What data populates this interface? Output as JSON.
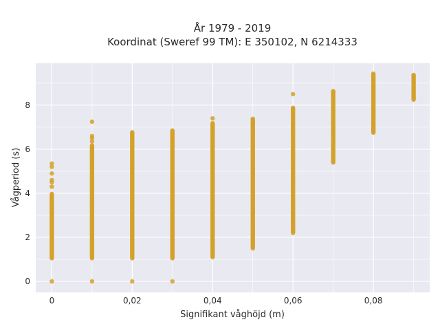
{
  "chart_data": {
    "type": "scatter",
    "title_line1": "År 1979 - 2019",
    "title_line2": "Koordinat (Sweref 99 TM): E 350102, N 6214333",
    "xlabel": "Signifikant våghöjd (m)",
    "ylabel": "Vågperiod (s)",
    "xlim": [
      -0.004,
      0.094
    ],
    "ylim": [
      -0.5,
      9.9
    ],
    "x_ticks": [
      0,
      0.02,
      0.04,
      0.06,
      0.08
    ],
    "x_tick_labels": [
      "0",
      "0,02",
      "0,04",
      "0,06",
      "0,08"
    ],
    "y_ticks": [
      0,
      2,
      4,
      6,
      8
    ],
    "y_tick_labels": [
      "0",
      "2",
      "4",
      "6",
      "8"
    ],
    "grid": true,
    "colors": {
      "plot_background": "#e9e9f1",
      "grid": "#ffffff",
      "marker": "#d4a12a"
    },
    "columns": [
      {
        "x": 0.0,
        "y_min": 1.05,
        "y_max": 4.0,
        "has_zero": true,
        "outliers": [
          4.3,
          4.5,
          4.6,
          4.9,
          5.2,
          5.35
        ]
      },
      {
        "x": 0.01,
        "y_min": 1.05,
        "y_max": 6.2,
        "has_zero": true,
        "outliers": [
          6.35,
          6.5,
          6.6,
          7.25
        ]
      },
      {
        "x": 0.02,
        "y_min": 1.05,
        "y_max": 6.8,
        "has_zero": true,
        "outliers": []
      },
      {
        "x": 0.03,
        "y_min": 1.05,
        "y_max": 6.85,
        "has_zero": true,
        "outliers": []
      },
      {
        "x": 0.04,
        "y_min": 1.1,
        "y_max": 7.2,
        "has_zero": false,
        "outliers": [
          7.4
        ]
      },
      {
        "x": 0.05,
        "y_min": 1.5,
        "y_max": 7.4,
        "has_zero": false,
        "outliers": []
      },
      {
        "x": 0.06,
        "y_min": 2.2,
        "y_max": 7.9,
        "has_zero": false,
        "outliers": [
          2.35,
          2.5,
          2.7,
          2.9,
          3.05,
          3.25,
          3.65,
          8.5
        ]
      },
      {
        "x": 0.07,
        "y_min": 5.4,
        "y_max": 8.65,
        "has_zero": false,
        "outliers": []
      },
      {
        "x": 0.08,
        "y_min": 6.75,
        "y_max": 9.45,
        "has_zero": false,
        "outliers": []
      },
      {
        "x": 0.09,
        "y_min": 8.25,
        "y_max": 9.4,
        "has_zero": false,
        "outliers": []
      }
    ]
  }
}
